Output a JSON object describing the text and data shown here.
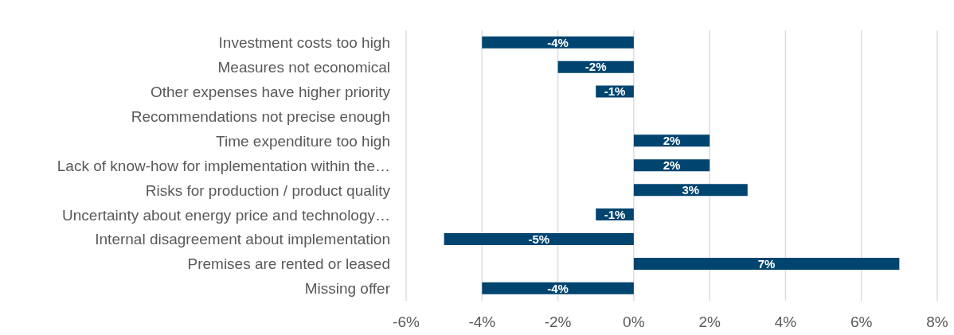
{
  "chart_data": {
    "type": "bar",
    "orientation": "horizontal",
    "categories": [
      "Investment costs too high",
      "Measures not economical",
      "Other expenses have higher priority",
      "Recommendations not precise enough",
      "Time expenditure too high",
      "Lack of know-how for implementation within the…",
      "Risks for production / product quality",
      "Uncertainty about energy price and technology…",
      "Internal disagreement about implementation",
      "Premises are rented or leased",
      "Missing offer"
    ],
    "values": [
      -4,
      -2,
      -1,
      null,
      2,
      2,
      3,
      -1,
      -5,
      7,
      -4
    ],
    "value_labels": [
      "-4%",
      "-2%",
      "-1%",
      null,
      "2%",
      "2%",
      "3%",
      "-1%",
      "-5%",
      "7%",
      "-4%"
    ],
    "color": "#004470",
    "xlim": [
      -6,
      8
    ],
    "xticks": [
      {
        "value": -6,
        "label": "-6%"
      },
      {
        "value": -4,
        "label": "-4%"
      },
      {
        "value": -2,
        "label": "-2%"
      },
      {
        "value": 0,
        "label": "0%"
      },
      {
        "value": 2,
        "label": "2%"
      },
      {
        "value": 4,
        "label": "4%"
      },
      {
        "value": 6,
        "label": "6%"
      },
      {
        "value": 8,
        "label": "8%"
      }
    ],
    "grid": "x"
  }
}
